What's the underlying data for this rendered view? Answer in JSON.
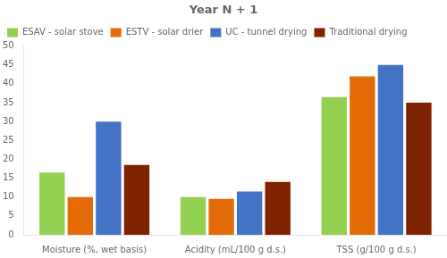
{
  "chart_data": {
    "type": "bar",
    "title": "Year N + 1",
    "categories": [
      "Moisture (%, wet basis)",
      "Acidity (mL/100 g d.s.)",
      "TSS (g/100 g d.s.)"
    ],
    "series": [
      {
        "name": "ESAV - solar stove",
        "color": "#92d050",
        "values": [
          16.5,
          10.0,
          36.5
        ]
      },
      {
        "name": "ESTV - solar drier",
        "color": "#e36c09",
        "values": [
          10.0,
          9.5,
          42.0
        ]
      },
      {
        "name": "UC - tunnel drying",
        "color": "#4472c4",
        "values": [
          30.0,
          11.5,
          45.0
        ]
      },
      {
        "name": "Traditional drying",
        "color": "#7f2200",
        "values": [
          18.5,
          14.0,
          35.0
        ]
      }
    ],
    "ylim": [
      0,
      50
    ],
    "yticks": [
      0,
      5,
      10,
      15,
      20,
      25,
      30,
      35,
      40,
      45,
      50
    ],
    "grid": false,
    "legend": "upper left"
  }
}
